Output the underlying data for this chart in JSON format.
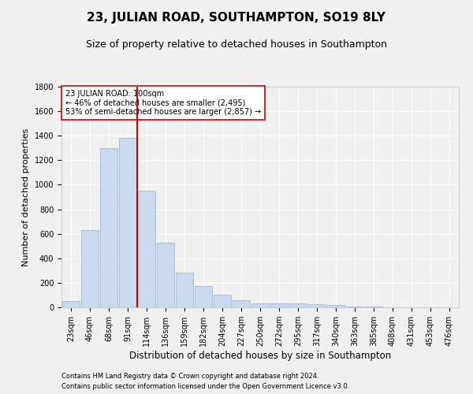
{
  "title1": "23, JULIAN ROAD, SOUTHAMPTON, SO19 8LY",
  "title2": "Size of property relative to detached houses in Southampton",
  "xlabel": "Distribution of detached houses by size in Southampton",
  "ylabel": "Number of detached properties",
  "categories": [
    "23sqm",
    "46sqm",
    "68sqm",
    "91sqm",
    "114sqm",
    "136sqm",
    "159sqm",
    "182sqm",
    "204sqm",
    "227sqm",
    "250sqm",
    "272sqm",
    "295sqm",
    "317sqm",
    "340sqm",
    "363sqm",
    "385sqm",
    "408sqm",
    "431sqm",
    "453sqm",
    "476sqm"
  ],
  "values": [
    50,
    630,
    1300,
    1380,
    950,
    530,
    280,
    175,
    100,
    60,
    35,
    30,
    30,
    25,
    20,
    5,
    5,
    2,
    1,
    1,
    1
  ],
  "bar_color": "#c9d9f0",
  "bar_edgecolor": "#a0b8d8",
  "vline_color": "#cc0000",
  "annotation_text": "23 JULIAN ROAD: 100sqm\n← 46% of detached houses are smaller (2,495)\n53% of semi-detached houses are larger (2,857) →",
  "annotation_box_color": "#ffffff",
  "annotation_box_edgecolor": "#cc0000",
  "ylim": [
    0,
    1800
  ],
  "yticks": [
    0,
    200,
    400,
    600,
    800,
    1000,
    1200,
    1400,
    1600,
    1800
  ],
  "footer1": "Contains HM Land Registry data © Crown copyright and database right 2024.",
  "footer2": "Contains public sector information licensed under the Open Government Licence v3.0.",
  "bg_color": "#f0f0f0",
  "title1_fontsize": 11,
  "title2_fontsize": 9,
  "tick_fontsize": 7,
  "ylabel_fontsize": 8,
  "xlabel_fontsize": 8.5,
  "annotation_fontsize": 7,
  "footer_fontsize": 6
}
